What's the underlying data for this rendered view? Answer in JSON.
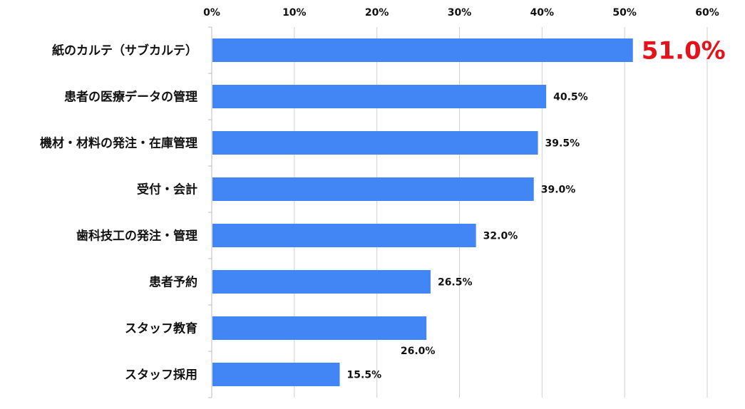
{
  "chart_data": {
    "type": "bar",
    "orientation": "horizontal",
    "categories": [
      "紙のカルテ（サブカルテ）",
      "患者の医療データの管理",
      "機材・材料の発注・在庫管理",
      "受付・会計",
      "歯科技工の発注・管理",
      "患者予約",
      "スタッフ教育",
      "スタッフ採用"
    ],
    "values": [
      51.0,
      40.5,
      39.5,
      39.0,
      32.0,
      26.5,
      26.0,
      15.5
    ],
    "data_labels": [
      "51.0%",
      "40.5%",
      "39.5%",
      "39.0%",
      "32.0%",
      "26.5%",
      "26.0%",
      "15.5%"
    ],
    "highlight_index": 0,
    "xlim": [
      0,
      60
    ],
    "x_ticks": [
      0,
      10,
      20,
      30,
      40,
      50,
      60
    ],
    "x_tick_labels": [
      "0%",
      "10%",
      "20%",
      "30%",
      "40%",
      "50%",
      "60%"
    ],
    "x_axis_position": "top",
    "grid": true,
    "legend": "none",
    "title": "",
    "xlabel": "",
    "ylabel": "",
    "colors": {
      "bar": "#4285f4",
      "highlight_label": "#e3121b",
      "text": "#111111",
      "grid": "#cfcfcf"
    }
  }
}
